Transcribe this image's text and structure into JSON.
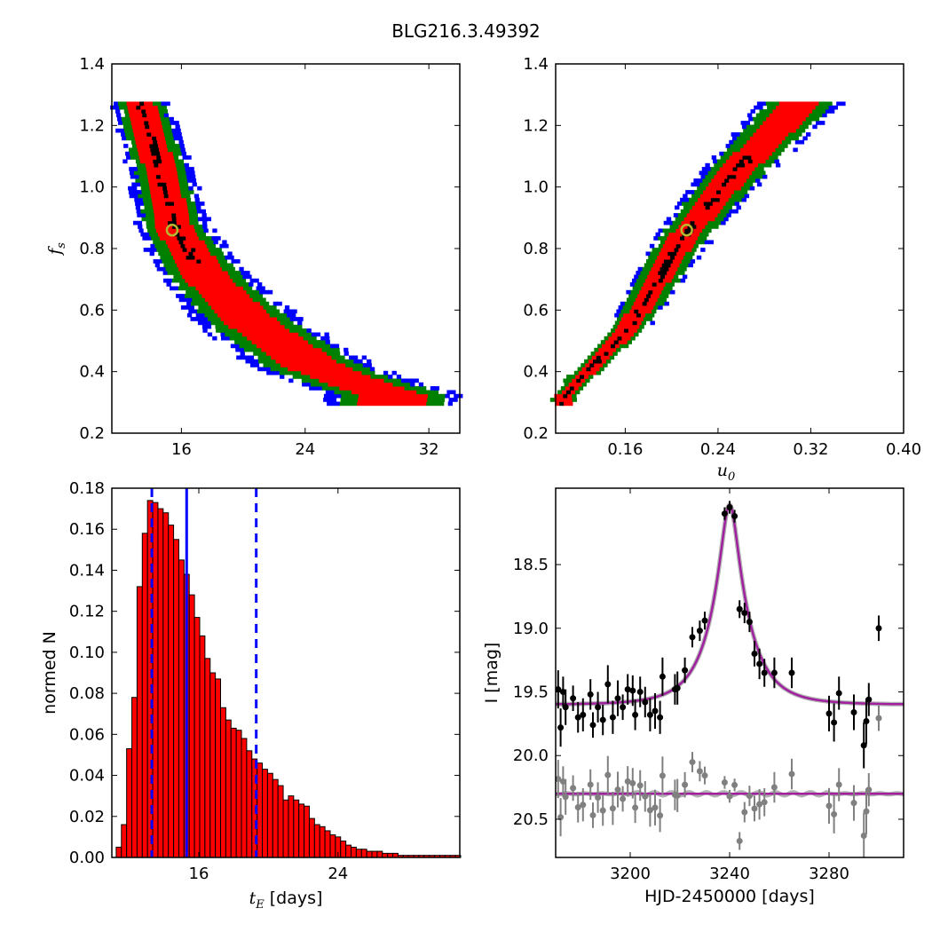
{
  "figure": {
    "title": "BLG216.3.49392"
  },
  "chart_data": [
    {
      "id": "fs_vs_tE",
      "type": "heatmap",
      "title": "",
      "xlabel": "",
      "ylabel_main": "f",
      "ylabel_sub": "s",
      "xlim": [
        11.5,
        34
      ],
      "ylim": [
        0.2,
        1.4
      ],
      "xticks": [
        16,
        24,
        32
      ],
      "yticks": [
        0.2,
        0.4,
        0.6,
        0.8,
        1.0,
        1.2,
        1.4
      ],
      "confidence_colors": {
        "best": "#000000",
        "1sigma": "#ff0000",
        "2sigma": "#008000",
        "3sigma": "#0000ff"
      },
      "best_fit": {
        "x": 15.4,
        "y": 0.86
      },
      "ridge": [
        [
          13.2,
          1.27
        ],
        [
          14.5,
          1.05
        ],
        [
          15.4,
          0.86
        ],
        [
          17.5,
          0.7
        ],
        [
          20.5,
          0.55
        ],
        [
          24.5,
          0.41
        ],
        [
          27.5,
          0.35
        ],
        [
          29.5,
          0.32
        ]
      ]
    },
    {
      "id": "fs_vs_u0",
      "type": "heatmap",
      "title": "",
      "xlabel_main": "u",
      "xlabel_sub": "0",
      "ylabel": "",
      "xlim": [
        0.1,
        0.4
      ],
      "ylim": [
        0.2,
        1.4
      ],
      "xticks": [
        0.16,
        0.24,
        0.32,
        0.4
      ],
      "yticks": [
        0.2,
        0.4,
        0.6,
        0.8,
        1.0,
        1.2,
        1.4
      ],
      "best_fit": {
        "x": 0.213,
        "y": 0.86
      },
      "ridge": [
        [
          0.105,
          0.315
        ],
        [
          0.16,
          0.53
        ],
        [
          0.21,
          0.84
        ],
        [
          0.255,
          1.05
        ],
        [
          0.31,
          1.27
        ]
      ]
    },
    {
      "id": "tE_histogram",
      "type": "bar",
      "title": "",
      "xlabel_main": "t",
      "xlabel_sub": "E",
      "xlabel_suffix": " [days]",
      "ylabel": "normed N",
      "xlim": [
        11,
        31
      ],
      "ylim": [
        0,
        0.18
      ],
      "xticks": [
        16,
        24
      ],
      "yticks": [
        0.0,
        0.02,
        0.04,
        0.06,
        0.08,
        0.1,
        0.12,
        0.14,
        0.16,
        0.18
      ],
      "bin_start": 11.25,
      "bin_width": 0.3,
      "bar_color": "#ff0000",
      "values": [
        0.005,
        0.016,
        0.053,
        0.078,
        0.132,
        0.158,
        0.174,
        0.173,
        0.17,
        0.168,
        0.162,
        0.155,
        0.145,
        0.138,
        0.128,
        0.117,
        0.108,
        0.097,
        0.09,
        0.087,
        0.073,
        0.067,
        0.063,
        0.062,
        0.058,
        0.052,
        0.048,
        0.046,
        0.043,
        0.041,
        0.038,
        0.035,
        0.028,
        0.03,
        0.028,
        0.026,
        0.025,
        0.019,
        0.016,
        0.015,
        0.013,
        0.011,
        0.01,
        0.008,
        0.006,
        0.005,
        0.004,
        0.004,
        0.003,
        0.003,
        0.003,
        0.002,
        0.002,
        0.002,
        0.001,
        0.001,
        0.001,
        0.001,
        0.001,
        0.001,
        0.001,
        0.001,
        0.001,
        0.001,
        0.001,
        0.001
      ],
      "median_line": 15.3,
      "interval_lines": [
        13.3,
        19.3
      ],
      "line_color": "#0000ff"
    },
    {
      "id": "light_curve",
      "type": "scatter",
      "title": "",
      "xlabel": "HJD-2450000 [days]",
      "ylabel": "I [mag]",
      "xlim": [
        3170,
        3310
      ],
      "ylim": [
        20.8,
        17.9
      ],
      "xticks": [
        3200,
        3240,
        3280
      ],
      "yticks": [
        "18.5",
        "19.0",
        "19.5",
        "20.0",
        "20.5"
      ],
      "ytick_values": [
        18.5,
        19.0,
        19.5,
        20.0,
        20.5
      ],
      "model": {
        "t0": 3240,
        "tE": 15.4,
        "u0": 0.213,
        "fs": 0.86,
        "base_mag": 19.6,
        "color": "#a020a0"
      },
      "residual_offset": 20.3,
      "points": [
        [
          3171,
          19.48,
          0.15
        ],
        [
          3172,
          19.78,
          0.15
        ],
        [
          3173,
          19.5,
          0.12
        ],
        [
          3174,
          19.62,
          0.14
        ],
        [
          3177,
          19.55,
          0.1
        ],
        [
          3179,
          19.7,
          0.12
        ],
        [
          3181,
          19.68,
          0.13
        ],
        [
          3184,
          19.52,
          0.12
        ],
        [
          3185,
          19.76,
          0.1
        ],
        [
          3187,
          19.62,
          0.12
        ],
        [
          3189,
          19.72,
          0.12
        ],
        [
          3191,
          19.44,
          0.15
        ],
        [
          3193,
          19.7,
          0.13
        ],
        [
          3195,
          19.55,
          0.14
        ],
        [
          3197,
          19.62,
          0.1
        ],
        [
          3199,
          19.48,
          0.12
        ],
        [
          3201,
          19.49,
          0.12
        ],
        [
          3202,
          19.68,
          0.12
        ],
        [
          3204,
          19.5,
          0.12
        ],
        [
          3206,
          19.58,
          0.12
        ],
        [
          3208,
          19.68,
          0.13
        ],
        [
          3210,
          19.65,
          0.14
        ],
        [
          3212,
          19.7,
          0.13
        ],
        [
          3213,
          19.38,
          0.15
        ],
        [
          3218,
          19.48,
          0.12
        ],
        [
          3219,
          19.47,
          0.13
        ],
        [
          3222,
          19.33,
          0.1
        ],
        [
          3225,
          19.07,
          0.08
        ],
        [
          3228,
          19.02,
          0.08
        ],
        [
          3230,
          18.94,
          0.07
        ],
        [
          3238,
          18.1,
          0.05
        ],
        [
          3240,
          18.05,
          0.05
        ],
        [
          3242,
          18.12,
          0.05
        ],
        [
          3244,
          18.85,
          0.07
        ],
        [
          3246,
          18.88,
          0.08
        ],
        [
          3248,
          18.95,
          0.08
        ],
        [
          3250,
          19.2,
          0.1
        ],
        [
          3252,
          19.28,
          0.12
        ],
        [
          3254,
          19.35,
          0.11
        ],
        [
          3258,
          19.35,
          0.12
        ],
        [
          3265,
          19.35,
          0.12
        ],
        [
          3280,
          19.67,
          0.14
        ],
        [
          3282,
          19.74,
          0.15
        ],
        [
          3284,
          19.51,
          0.13
        ],
        [
          3290,
          19.66,
          0.14
        ],
        [
          3294,
          19.92,
          0.18
        ],
        [
          3295,
          19.73,
          0.18
        ],
        [
          3296,
          19.56,
          0.13
        ],
        [
          3300,
          19.0,
          0.1
        ]
      ]
    }
  ]
}
